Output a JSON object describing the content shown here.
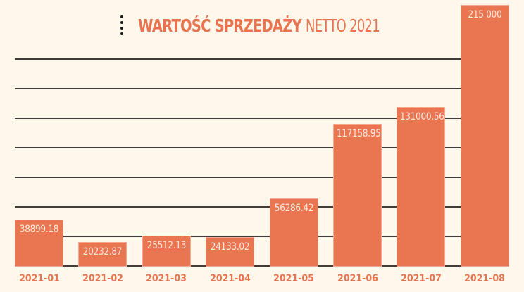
{
  "title": {
    "menu_icon": "kebab-menu-icon",
    "bold": "WARTOŚĆ SPRZEDAŻY",
    "light": "NETTO 2021"
  },
  "colors": {
    "background": "#fdf7ec",
    "bar": "#e97551",
    "accent_text": "#e9734f",
    "grid": "#3f3c3a",
    "bar_label": "#fdebe0"
  },
  "chart_data": {
    "type": "bar",
    "title": "WARTOŚĆ SPRZEDAŻY NETTO 2021",
    "xlabel": "",
    "ylabel": "",
    "categories": [
      "2021-01",
      "2021-02",
      "2021-03",
      "2021-04",
      "2021-05",
      "2021-06",
      "2021-07",
      "2021-08"
    ],
    "values": [
      38899.18,
      20232.87,
      25512.13,
      24133.02,
      56286.42,
      117158.95,
      131000.56,
      215000
    ],
    "data_labels": [
      "38899.18",
      "20232.87",
      "25512.13",
      "24133.02",
      "56286.42",
      "117158.95",
      "131000.56",
      "215 000"
    ],
    "ylim": [
      0,
      215000
    ],
    "grid": true,
    "gridlines_count": 8,
    "y_tick_labels_shown": false,
    "legend": "none"
  }
}
